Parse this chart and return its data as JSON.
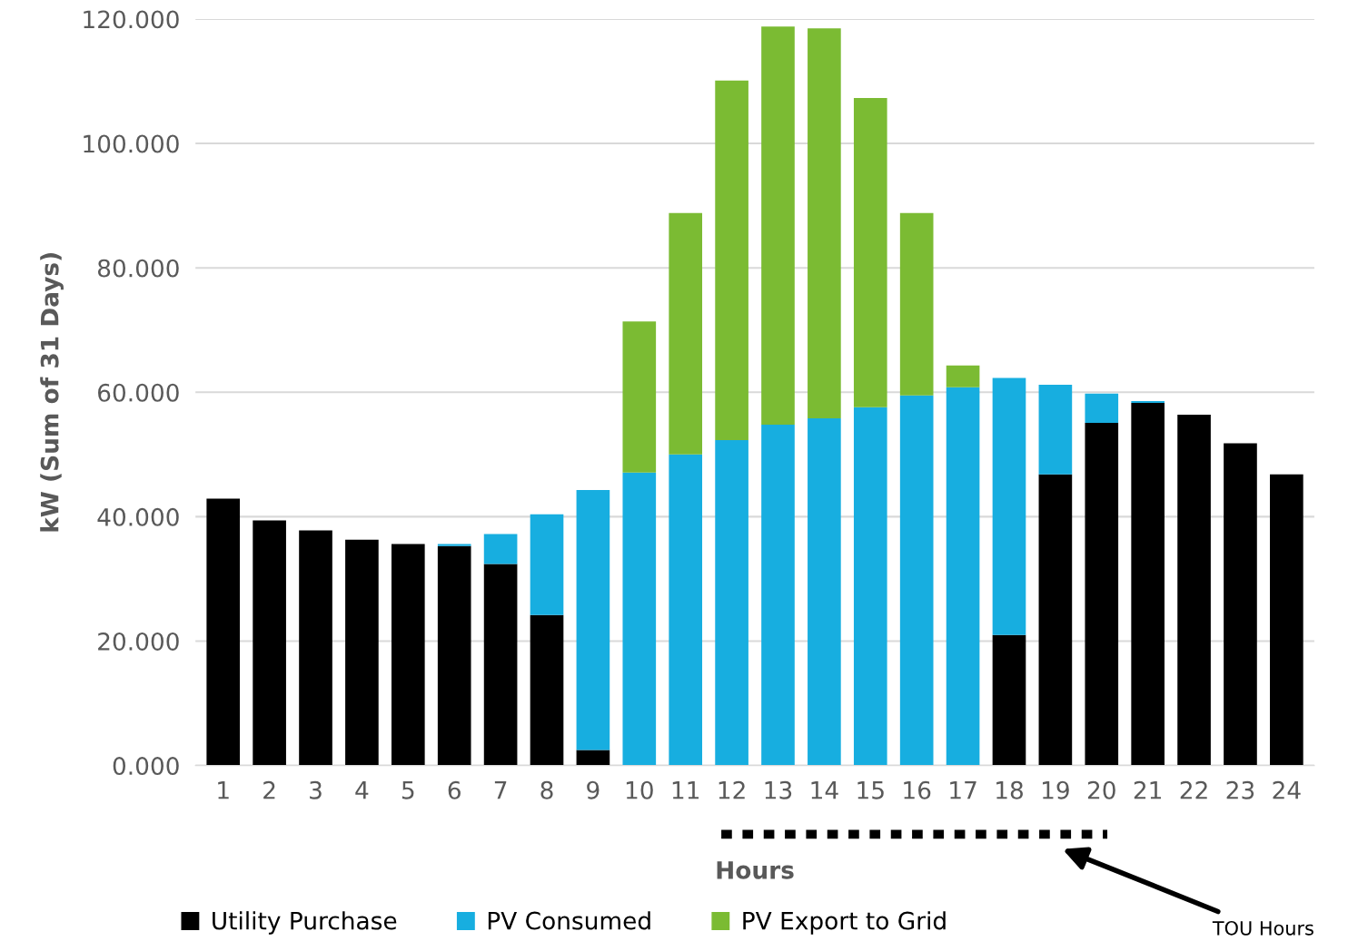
{
  "chart_data": {
    "type": "bar",
    "stacked": true,
    "xlabel": "Hours",
    "ylabel": "kW (Sum of 31 Days)",
    "categories": [
      "1",
      "2",
      "3",
      "4",
      "5",
      "6",
      "7",
      "8",
      "9",
      "10",
      "11",
      "12",
      "13",
      "14",
      "15",
      "16",
      "17",
      "18",
      "19",
      "20",
      "21",
      "22",
      "23",
      "24"
    ],
    "series": [
      {
        "name": "Utility Purchase",
        "color": "#000000",
        "values": [
          42.9,
          39.4,
          37.8,
          36.3,
          35.6,
          35.3,
          32.4,
          24.2,
          2.5,
          0,
          0,
          0,
          0,
          0,
          0,
          0,
          0,
          21.0,
          46.8,
          55.1,
          58.3,
          56.4,
          51.8,
          46.8
        ]
      },
      {
        "name": "PV Consumed",
        "color": "#17aee0",
        "values": [
          0,
          0,
          0,
          0,
          0,
          0.3,
          4.8,
          16.2,
          41.8,
          47.1,
          50.0,
          52.3,
          54.8,
          55.8,
          57.6,
          59.5,
          60.8,
          41.3,
          14.4,
          4.7,
          0.3,
          0,
          0,
          0
        ]
      },
      {
        "name": "PV Export to Grid",
        "color": "#7bbb33",
        "values": [
          0,
          0,
          0,
          0,
          0,
          0,
          0,
          0,
          0,
          24.3,
          38.8,
          57.8,
          64.0,
          62.7,
          49.7,
          29.3,
          3.5,
          0,
          0,
          0,
          0,
          0,
          0,
          0
        ]
      }
    ],
    "ylim": [
      0,
      120
    ],
    "yticks": [
      {
        "value": 0,
        "label": "0.000"
      },
      {
        "value": 20,
        "label": "20.000"
      },
      {
        "value": 40,
        "label": "40.000"
      },
      {
        "value": 60,
        "label": "60.000"
      },
      {
        "value": 80,
        "label": "80.000"
      },
      {
        "value": 100,
        "label": "100.000"
      },
      {
        "value": 120,
        "label": "120.000"
      }
    ],
    "grid": "y",
    "legend": "bottom",
    "annotations": [
      "TOU Hours"
    ]
  }
}
